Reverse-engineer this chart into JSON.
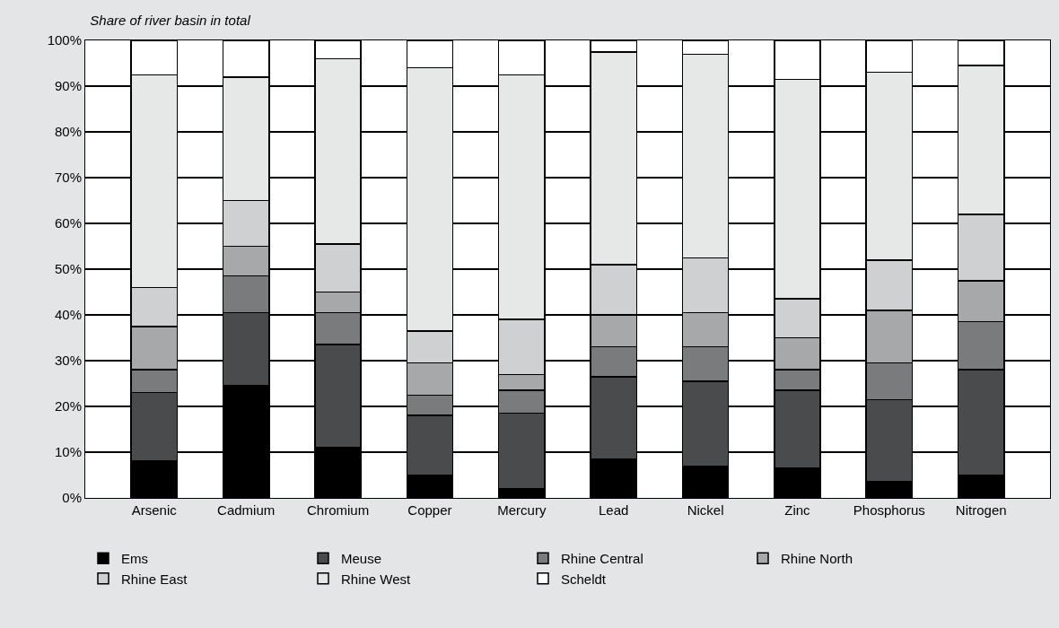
{
  "chart_data": {
    "type": "bar",
    "title": "Share of river basin in total",
    "stacked": true,
    "categories": [
      "Arsenic",
      "Cadmium",
      "Chromium",
      "Copper",
      "Mercury",
      "Lead",
      "Nickel",
      "Zinc",
      "Phosphorus",
      "Nitrogen"
    ],
    "series": [
      {
        "name": "Ems",
        "color": "#000000",
        "values": [
          8,
          24.5,
          11,
          5,
          2,
          8.5,
          7,
          6.5,
          3.5,
          5
        ]
      },
      {
        "name": "Meuse",
        "color": "#4a4b4d",
        "values": [
          15,
          16,
          22.5,
          13,
          16.5,
          18,
          18.5,
          17,
          18,
          23
        ]
      },
      {
        "name": "Rhine Central",
        "color": "#7a7b7d",
        "values": [
          5,
          8,
          7,
          4.5,
          5,
          6.5,
          7.5,
          4.5,
          8,
          10.5
        ]
      },
      {
        "name": "Rhine North",
        "color": "#a7a8aa",
        "values": [
          9.5,
          6.5,
          4.5,
          7,
          3.5,
          7,
          7.5,
          7,
          11.5,
          9
        ]
      },
      {
        "name": "Rhine East",
        "color": "#cfd0d2",
        "values": [
          8.5,
          10,
          10.5,
          7,
          12,
          11,
          12,
          8.5,
          11,
          14.5
        ]
      },
      {
        "name": "Rhine West",
        "color": "#e6e7e7",
        "values": [
          46.5,
          27,
          40.5,
          57.5,
          53.5,
          46.5,
          44.5,
          48,
          41,
          32.5
        ]
      },
      {
        "name": "Scheldt",
        "color": "#ffffff",
        "values": [
          7.5,
          8,
          4,
          6,
          7.5,
          2.5,
          3,
          8.5,
          7,
          5.5
        ]
      }
    ],
    "ylim": [
      0,
      100
    ],
    "yticks": [
      {
        "value": 0,
        "label": "0%"
      },
      {
        "value": 10,
        "label": "10%"
      },
      {
        "value": 20,
        "label": "20%"
      },
      {
        "value": 30,
        "label": "30%"
      },
      {
        "value": 40,
        "label": "40%"
      },
      {
        "value": 50,
        "label": "50%"
      },
      {
        "value": 60,
        "label": "60%"
      },
      {
        "value": 70,
        "label": "70%"
      },
      {
        "value": 80,
        "label": "80%"
      },
      {
        "value": 90,
        "label": "90%"
      },
      {
        "value": 100,
        "label": "100%"
      }
    ],
    "grid": "y",
    "legend": "bottom"
  }
}
